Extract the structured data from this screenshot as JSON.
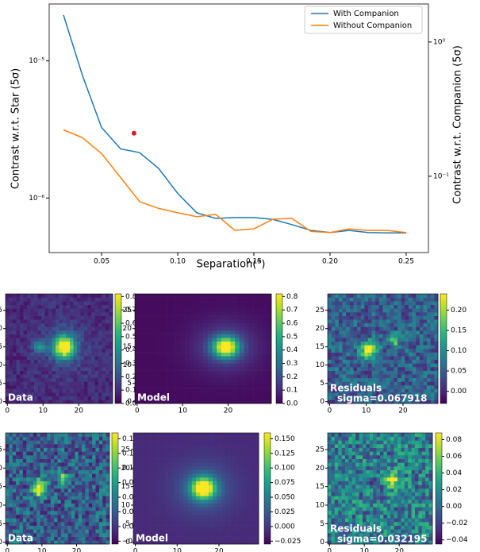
{
  "chart_data": [
    {
      "type": "line",
      "x": [
        0.025,
        0.0375,
        0.05,
        0.0625,
        0.075,
        0.0875,
        0.1,
        0.1125,
        0.125,
        0.1375,
        0.15,
        0.1625,
        0.175,
        0.1875,
        0.2,
        0.2125,
        0.225,
        0.2375,
        0.25
      ],
      "series": [
        {
          "name": "With Companion",
          "color": "#1f77b4",
          "values": [
            2.16e-05,
            7.8e-06,
            3.27e-06,
            2.28e-06,
            2.14e-06,
            1.64e-06,
            1.08e-06,
            7.8e-07,
            7.1e-07,
            7.2e-07,
            7.2e-07,
            6.98e-07,
            6.4e-07,
            5.8e-07,
            5.6e-07,
            5.8e-07,
            5.6e-07,
            5.57e-07,
            5.57e-07
          ]
        },
        {
          "name": "Without Companion",
          "color": "#ff7f0e",
          "values": [
            3.14e-06,
            2.75e-06,
            2.11e-06,
            1.41e-06,
            9.4e-07,
            8.4e-07,
            7.8e-07,
            7.3e-07,
            7.6e-07,
            5.8e-07,
            5.96e-07,
            7e-07,
            7.1e-07,
            5.7e-07,
            5.6e-07,
            5.96e-07,
            5.8e-07,
            5.8e-07,
            5.6e-07
          ]
        },
        {
          "type": "scatter",
          "color": "#e41a1c",
          "axis": "y2",
          "x": [
            0.0713
          ],
          "values": [
            0.209
          ]
        }
      ],
      "xlabel": "Separation(\")",
      "ylabel": "Contrast w.r.t. Star (5σ)",
      "y2label": "Contrast w.r.t. Companion (5σ)",
      "xlim": [
        0.0156,
        0.2646
      ],
      "xticks": [
        0.05,
        {
          "value": 0.1,
          "label": "0.10"
        },
        0.15,
        {
          "value": 0.2,
          "label": "0.20"
        },
        0.25
      ],
      "ylim": [
        4e-07,
        2.6e-05
      ],
      "ylog": true,
      "yticks": [
        {
          "value": 1e-05,
          "label": "10⁻⁵"
        },
        {
          "value": 1e-06,
          "label": "10⁻⁶"
        }
      ],
      "y2lim": [
        0.027,
        1.92
      ],
      "y2log": true,
      "y2ticks": [
        {
          "value": 1,
          "label": "10⁰"
        },
        {
          "value": 0.1,
          "label": "10⁻¹"
        }
      ],
      "legend": "upper right"
    },
    {
      "type": "image",
      "label": "Data",
      "xticks": [
        0,
        10,
        20
      ],
      "yticks": [
        0,
        5,
        10,
        15,
        20,
        25
      ],
      "clim": [
        0,
        0.82
      ],
      "cticks": [
        {
          "value": 0,
          "label": "0.0"
        },
        0.1,
        0.2,
        0.3,
        0.4,
        0.5,
        0.6,
        0.7,
        0.8
      ]
    },
    {
      "type": "image",
      "label": "Model",
      "xticks": [
        0,
        10,
        20
      ],
      "yticks": [
        0,
        5,
        10,
        15,
        20,
        25
      ],
      "clim": [
        0,
        0.82
      ],
      "cticks": [
        {
          "value": 0,
          "label": "0.0"
        },
        0.1,
        0.2,
        0.3,
        0.4,
        0.5,
        0.6,
        0.7,
        0.8
      ]
    },
    {
      "type": "image",
      "label": "Residuals",
      "sigma_label": "sigma=0.067918",
      "xticks": [
        0,
        10,
        20
      ],
      "yticks": [
        0,
        5,
        10,
        15,
        20,
        25
      ],
      "clim": [
        -0.03,
        0.24
      ],
      "cticks": [
        {
          "value": 0,
          "label": "0.00"
        },
        0.05,
        {
          "value": 0.1,
          "label": "0.10"
        },
        0.15,
        {
          "value": 0.2,
          "label": "0.20"
        }
      ]
    },
    {
      "type": "image",
      "label": "Data",
      "xticks": [
        0,
        10,
        20
      ],
      "yticks": [
        0,
        5,
        10,
        15,
        20,
        25
      ],
      "clim": [
        -0.03,
        0.16
      ],
      "cticks": [
        {
          "value": -0.025,
          "label": "−0.025"
        },
        {
          "value": 0,
          "label": "0.000"
        },
        0.025,
        {
          "value": 0.05,
          "label": "0.050"
        },
        0.075,
        {
          "value": 0.1,
          "label": "0.100"
        },
        0.125,
        {
          "value": 0.15,
          "label": "0.150"
        }
      ]
    },
    {
      "type": "image",
      "label": "Model",
      "xticks": [
        0,
        10,
        20
      ],
      "yticks": [
        0,
        5,
        10,
        15,
        20,
        25
      ],
      "clim": [
        -0.03,
        0.16
      ],
      "cticks": [
        {
          "value": -0.025,
          "label": "−0.025"
        },
        {
          "value": 0,
          "label": "0.000"
        },
        0.025,
        {
          "value": 0.05,
          "label": "0.050"
        },
        0.075,
        {
          "value": 0.1,
          "label": "0.100"
        },
        0.125,
        {
          "value": 0.15,
          "label": "0.150"
        }
      ]
    },
    {
      "type": "image",
      "label": "Residuals",
      "sigma_label": "sigma=0.032195",
      "xticks": [
        0,
        10,
        20
      ],
      "yticks": [
        0,
        5,
        10,
        15,
        20,
        25
      ],
      "clim": [
        -0.045,
        0.088
      ],
      "cticks": [
        {
          "value": -0.04,
          "label": "−0.04"
        },
        {
          "value": -0.02,
          "label": "−0.02"
        },
        {
          "value": 0,
          "label": "0.00"
        },
        0.02,
        0.04,
        0.06,
        0.08
      ]
    }
  ]
}
